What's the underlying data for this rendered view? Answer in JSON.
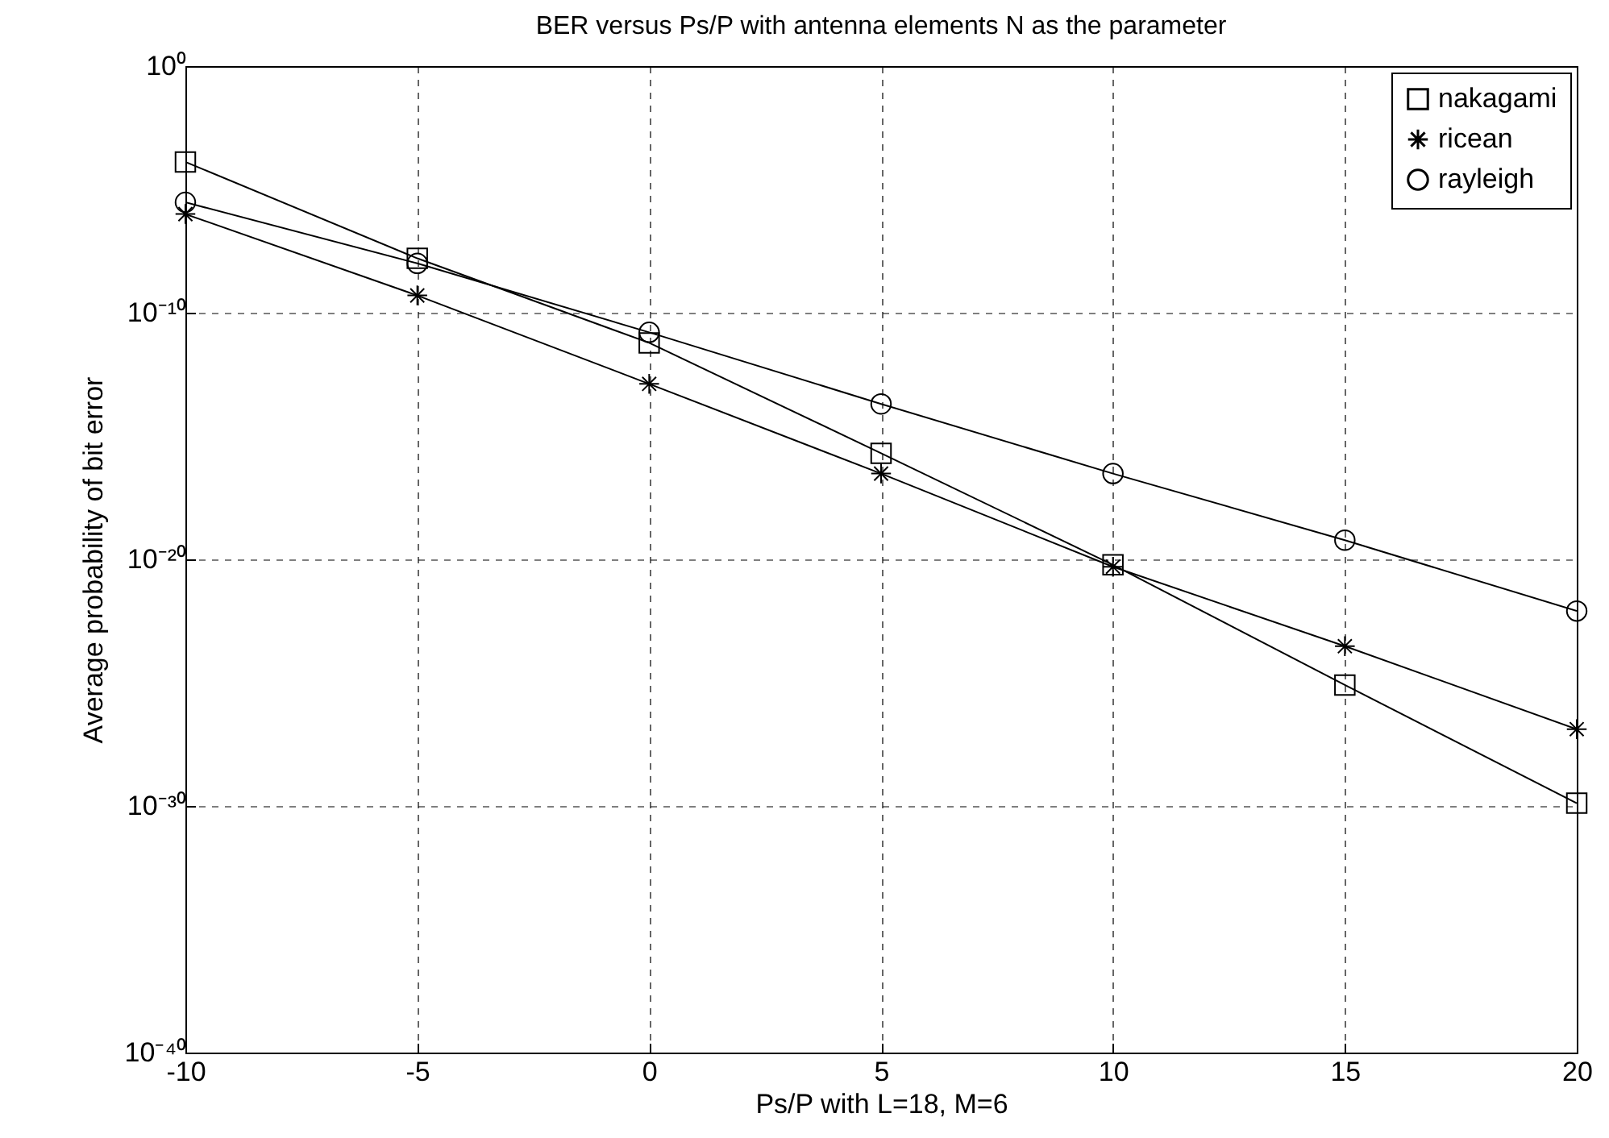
{
  "chart_data": {
    "type": "line",
    "title": "BER versus Ps/P with  antenna elements N as the parameter",
    "xlabel": "Ps/P with L=18, M=6",
    "ylabel": "Average probability of bit error",
    "x": [
      -10,
      -5,
      0,
      5,
      10,
      15,
      20
    ],
    "series": [
      {
        "name": "nakagami",
        "color": "#000000",
        "marker": "square",
        "values": [
          0.00013,
          1.6e-08,
          6e-12,
          2e-16,
          6e-21,
          8e-26,
          1.3e-30
        ]
      },
      {
        "name": "ricean",
        "color": "#000000",
        "marker": "cross",
        "values": [
          1e-06,
          5e-10,
          1.3e-13,
          3e-17,
          5e-21,
          3e-24,
          1.3e-27
        ]
      },
      {
        "name": "rayleigh",
        "color": "#000000",
        "marker": "circle",
        "values": [
          3e-06,
          1e-08,
          1.6e-11,
          2e-14,
          3e-17,
          6e-20,
          8e-23
        ]
      }
    ],
    "log": true,
    "xlim": [
      -10,
      20
    ],
    "xticks": [
      -10,
      -5,
      0,
      5,
      10,
      15,
      20
    ],
    "ylim": [
      1e-40,
      1
    ],
    "yticks": [
      {
        "value": 1e-40,
        "label": "10⁻⁴⁰"
      },
      {
        "value": 1e-30,
        "label": "10⁻³⁰"
      },
      {
        "value": 1e-20,
        "label": "10⁻²⁰"
      },
      {
        "value": 1e-10,
        "label": "10⁻¹⁰"
      },
      {
        "value": 1,
        "label": "10⁰"
      }
    ],
    "grid": true,
    "legend": "top right",
    "line_style": "solid"
  }
}
